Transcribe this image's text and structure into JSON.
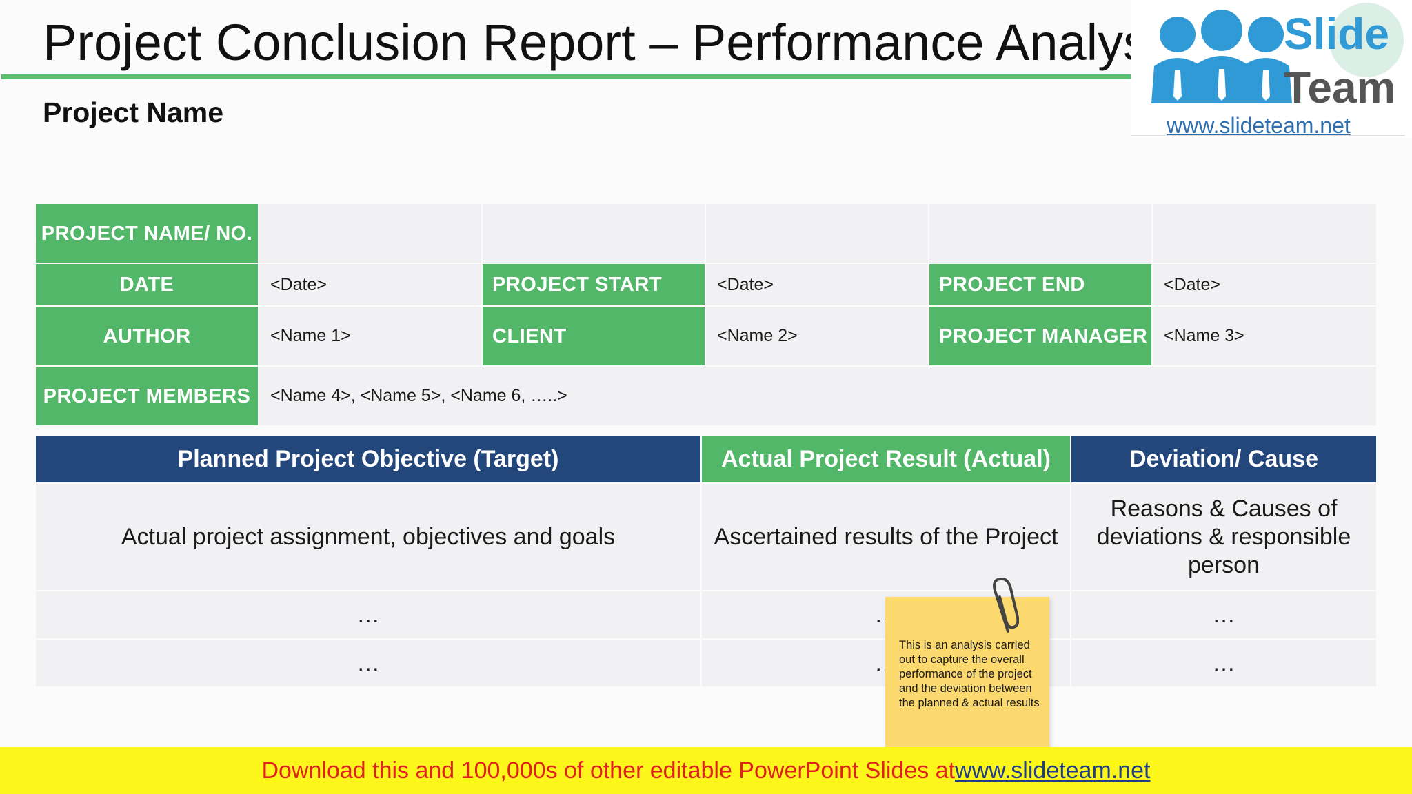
{
  "slide": {
    "title": "Project Conclusion Report – Performance Analysis",
    "subtitle": "Project Name"
  },
  "logo": {
    "word1": "Slide",
    "word2": "Team",
    "url": "www.slideteam.net"
  },
  "info_table": {
    "project_name_label": "PROJECT NAME/ NO.",
    "date_label": "DATE",
    "date_value": "<Date>",
    "project_start_label": "PROJECT START",
    "project_start_value": "<Date>",
    "project_end_label": "PROJECT END",
    "project_end_value": "<Date>",
    "author_label": "AUTHOR",
    "author_value": "<Name 1>",
    "client_label": "CLIENT",
    "client_value": "<Name 2>",
    "project_manager_label": "PROJECT MANAGER",
    "project_manager_value": "<Name 3>",
    "members_label": "PROJECT MEMBERS",
    "members_value": "<Name 4>, <Name 5>, <Name 6, …..>"
  },
  "result_table": {
    "headers": [
      "Planned Project Objective (Target)",
      "Actual Project Result (Actual)",
      "Deviation/ Cause"
    ],
    "rows": [
      [
        "Actual project assignment, objectives and goals",
        "Ascertained results of the Project",
        "Reasons & Causes of deviations & responsible person"
      ],
      [
        "…",
        "…",
        "…"
      ],
      [
        "…",
        "…",
        "…"
      ]
    ]
  },
  "note": {
    "text": "This is an analysis carried out to capture the overall performance of the project and the deviation between the planned & actual results"
  },
  "banner": {
    "text": "Download this and 100,000s of other editable PowerPoint Slides at ",
    "link": "www.slideteam.net"
  },
  "colors": {
    "green": "#52b768",
    "navy": "#23467b",
    "banner_yellow": "#fdf61a",
    "note_yellow": "#fcd96f"
  }
}
